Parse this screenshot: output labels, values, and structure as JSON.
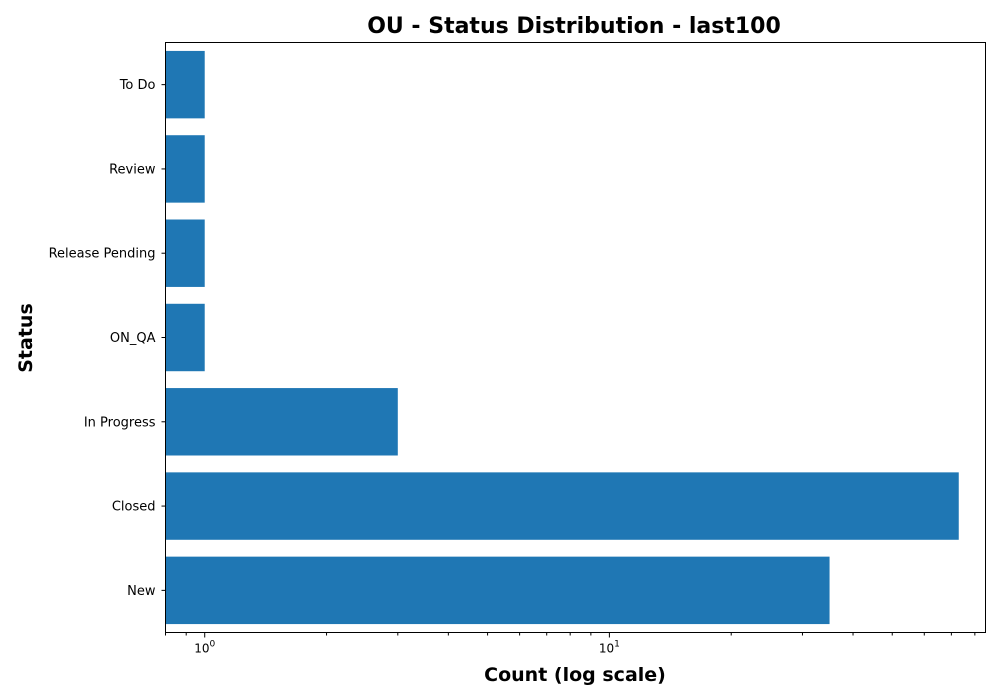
{
  "chart_data": {
    "type": "bar",
    "orientation": "horizontal",
    "title": "OU - Status Distribution - last100",
    "xlabel": "Count (log scale)",
    "ylabel": "Status",
    "x_scale": "log",
    "xlim": [
      0.8,
      85
    ],
    "categories": [
      "New",
      "Closed",
      "In Progress",
      "ON_QA",
      "Release Pending",
      "Review",
      "To Do"
    ],
    "values": [
      35,
      73,
      3,
      1,
      1,
      1,
      1
    ],
    "major_ticks": [
      {
        "value": 1,
        "base": "10",
        "exp": "0"
      },
      {
        "value": 10,
        "base": "10",
        "exp": "1"
      }
    ],
    "bar_color": "#1f77b4",
    "grid": false,
    "legend": "none"
  }
}
